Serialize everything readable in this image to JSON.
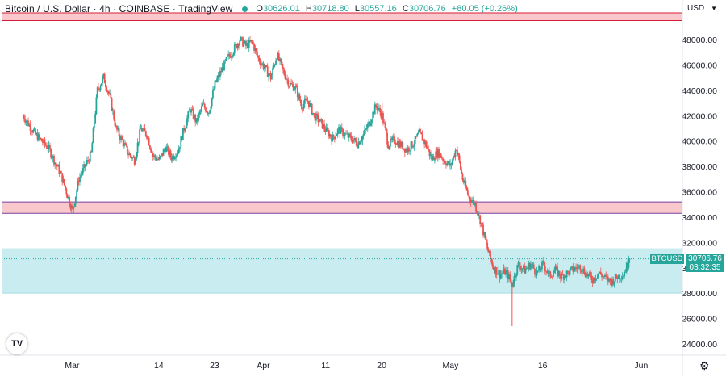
{
  "legend": {
    "symbol": "Bitcoin / U.S. Dollar",
    "interval": "4h",
    "exchange": "COINBASE",
    "source": "TradingView",
    "open_label": "O",
    "open": "30626.01",
    "high_label": "H",
    "high": "30718.80",
    "low_label": "L",
    "low": "30557.16",
    "close_label": "C",
    "close": "30706.76",
    "change": "+80.05 (+0.26%)"
  },
  "currency": "USD",
  "price_tag": {
    "symbol": "BTCUSD",
    "price": "30706.76",
    "countdown": "03:32:35"
  },
  "logo": "TV",
  "settings_icon": "gear-icon",
  "colors": {
    "up": "#26a69a",
    "down": "#ef5350",
    "resistance_zone": "#f8c8cc",
    "support_zone": "#c8ecf0",
    "zone_line_red": "#d81b35",
    "zone_line_purple": "#7b3fa0"
  },
  "chart_data": {
    "type": "candlestick",
    "title": "",
    "xlabel": "",
    "ylabel": "",
    "ylim": [
      23000,
      50000
    ],
    "y_ticks": [
      "48000.00",
      "46000.00",
      "44000.00",
      "42000.00",
      "40000.00",
      "38000.00",
      "36000.00",
      "34000.00",
      "32000.00",
      "30000.00",
      "28000.00",
      "26000.00",
      "24000.00"
    ],
    "x_ticks": [
      "Mar",
      "14",
      "23",
      "Apr",
      "11",
      "20",
      "May",
      "16",
      "Jun"
    ],
    "x_tick_day": [
      0,
      14,
      23,
      31,
      41,
      50,
      61,
      76,
      92
    ],
    "x_range_days": [
      -8,
      93
    ],
    "last_day": 90,
    "zones": [
      {
        "name": "resistance",
        "from": 49500,
        "to": 50100,
        "fill": "#f8c8cc",
        "edge": "#d81b35"
      },
      {
        "name": "mid",
        "from": 34300,
        "to": 35200,
        "fill": "#f8c8cc",
        "edge": "#7b3fa0"
      },
      {
        "name": "support",
        "from": 28000,
        "to": 31500,
        "fill": "#c8ecf0",
        "edge": "#a8dce4"
      }
    ],
    "last_price": 30706.76,
    "path": [
      [
        -8,
        42000
      ],
      [
        -6,
        40500
      ],
      [
        -4,
        39500
      ],
      [
        -2,
        37500
      ],
      [
        -1,
        36000
      ],
      [
        0,
        34500
      ],
      [
        1,
        37000
      ],
      [
        2,
        38000
      ],
      [
        3,
        39000
      ],
      [
        4,
        44000
      ],
      [
        5,
        45000
      ],
      [
        6,
        43500
      ],
      [
        7,
        41000
      ],
      [
        8,
        40000
      ],
      [
        9,
        39000
      ],
      [
        10,
        38500
      ],
      [
        11,
        41000
      ],
      [
        12,
        40500
      ],
      [
        13,
        38800
      ],
      [
        14,
        38500
      ],
      [
        15,
        39500
      ],
      [
        16,
        38700
      ],
      [
        17,
        39200
      ],
      [
        18,
        41000
      ],
      [
        19,
        42500
      ],
      [
        20,
        41500
      ],
      [
        21,
        42800
      ],
      [
        22,
        42300
      ],
      [
        23,
        44500
      ],
      [
        24,
        45500
      ],
      [
        25,
        46500
      ],
      [
        26,
        47200
      ],
      [
        27,
        48000
      ],
      [
        28,
        47500
      ],
      [
        29,
        47800
      ],
      [
        30,
        46500
      ],
      [
        31,
        45800
      ],
      [
        32,
        45000
      ],
      [
        33,
        46800
      ],
      [
        34,
        45500
      ],
      [
        35,
        44500
      ],
      [
        36,
        44200
      ],
      [
        37,
        42800
      ],
      [
        38,
        43200
      ],
      [
        39,
        42000
      ],
      [
        40,
        41500
      ],
      [
        41,
        40800
      ],
      [
        42,
        40200
      ],
      [
        43,
        40900
      ],
      [
        44,
        40500
      ],
      [
        45,
        40200
      ],
      [
        46,
        39800
      ],
      [
        47,
        40500
      ],
      [
        48,
        41500
      ],
      [
        49,
        42800
      ],
      [
        50,
        42000
      ],
      [
        51,
        39700
      ],
      [
        52,
        40100
      ],
      [
        53,
        39700
      ],
      [
        54,
        39300
      ],
      [
        55,
        39800
      ],
      [
        56,
        40600
      ],
      [
        57,
        39800
      ],
      [
        58,
        38600
      ],
      [
        59,
        39100
      ],
      [
        60,
        38500
      ],
      [
        61,
        38000
      ],
      [
        62,
        39500
      ],
      [
        63,
        37000
      ],
      [
        64,
        35600
      ],
      [
        65,
        35000
      ],
      [
        66,
        33500
      ],
      [
        67,
        31500
      ],
      [
        68,
        30000
      ],
      [
        69,
        29500
      ],
      [
        70,
        29700
      ],
      [
        71,
        28700
      ],
      [
        72,
        30300
      ],
      [
        73,
        29800
      ],
      [
        74,
        30300
      ],
      [
        75,
        29600
      ],
      [
        76,
        30300
      ],
      [
        77,
        29400
      ],
      [
        78,
        29800
      ],
      [
        79,
        29300
      ],
      [
        80,
        29600
      ],
      [
        81,
        29900
      ],
      [
        82,
        30100
      ],
      [
        83,
        29500
      ],
      [
        84,
        29100
      ],
      [
        85,
        29600
      ],
      [
        86,
        29200
      ],
      [
        87,
        28900
      ],
      [
        88,
        29300
      ],
      [
        89,
        29500
      ],
      [
        90,
        30707
      ]
    ],
    "wicks": [
      [
        0,
        34500
      ],
      [
        71,
        25400
      ],
      [
        29,
        48300
      ],
      [
        50,
        43000
      ]
    ]
  }
}
